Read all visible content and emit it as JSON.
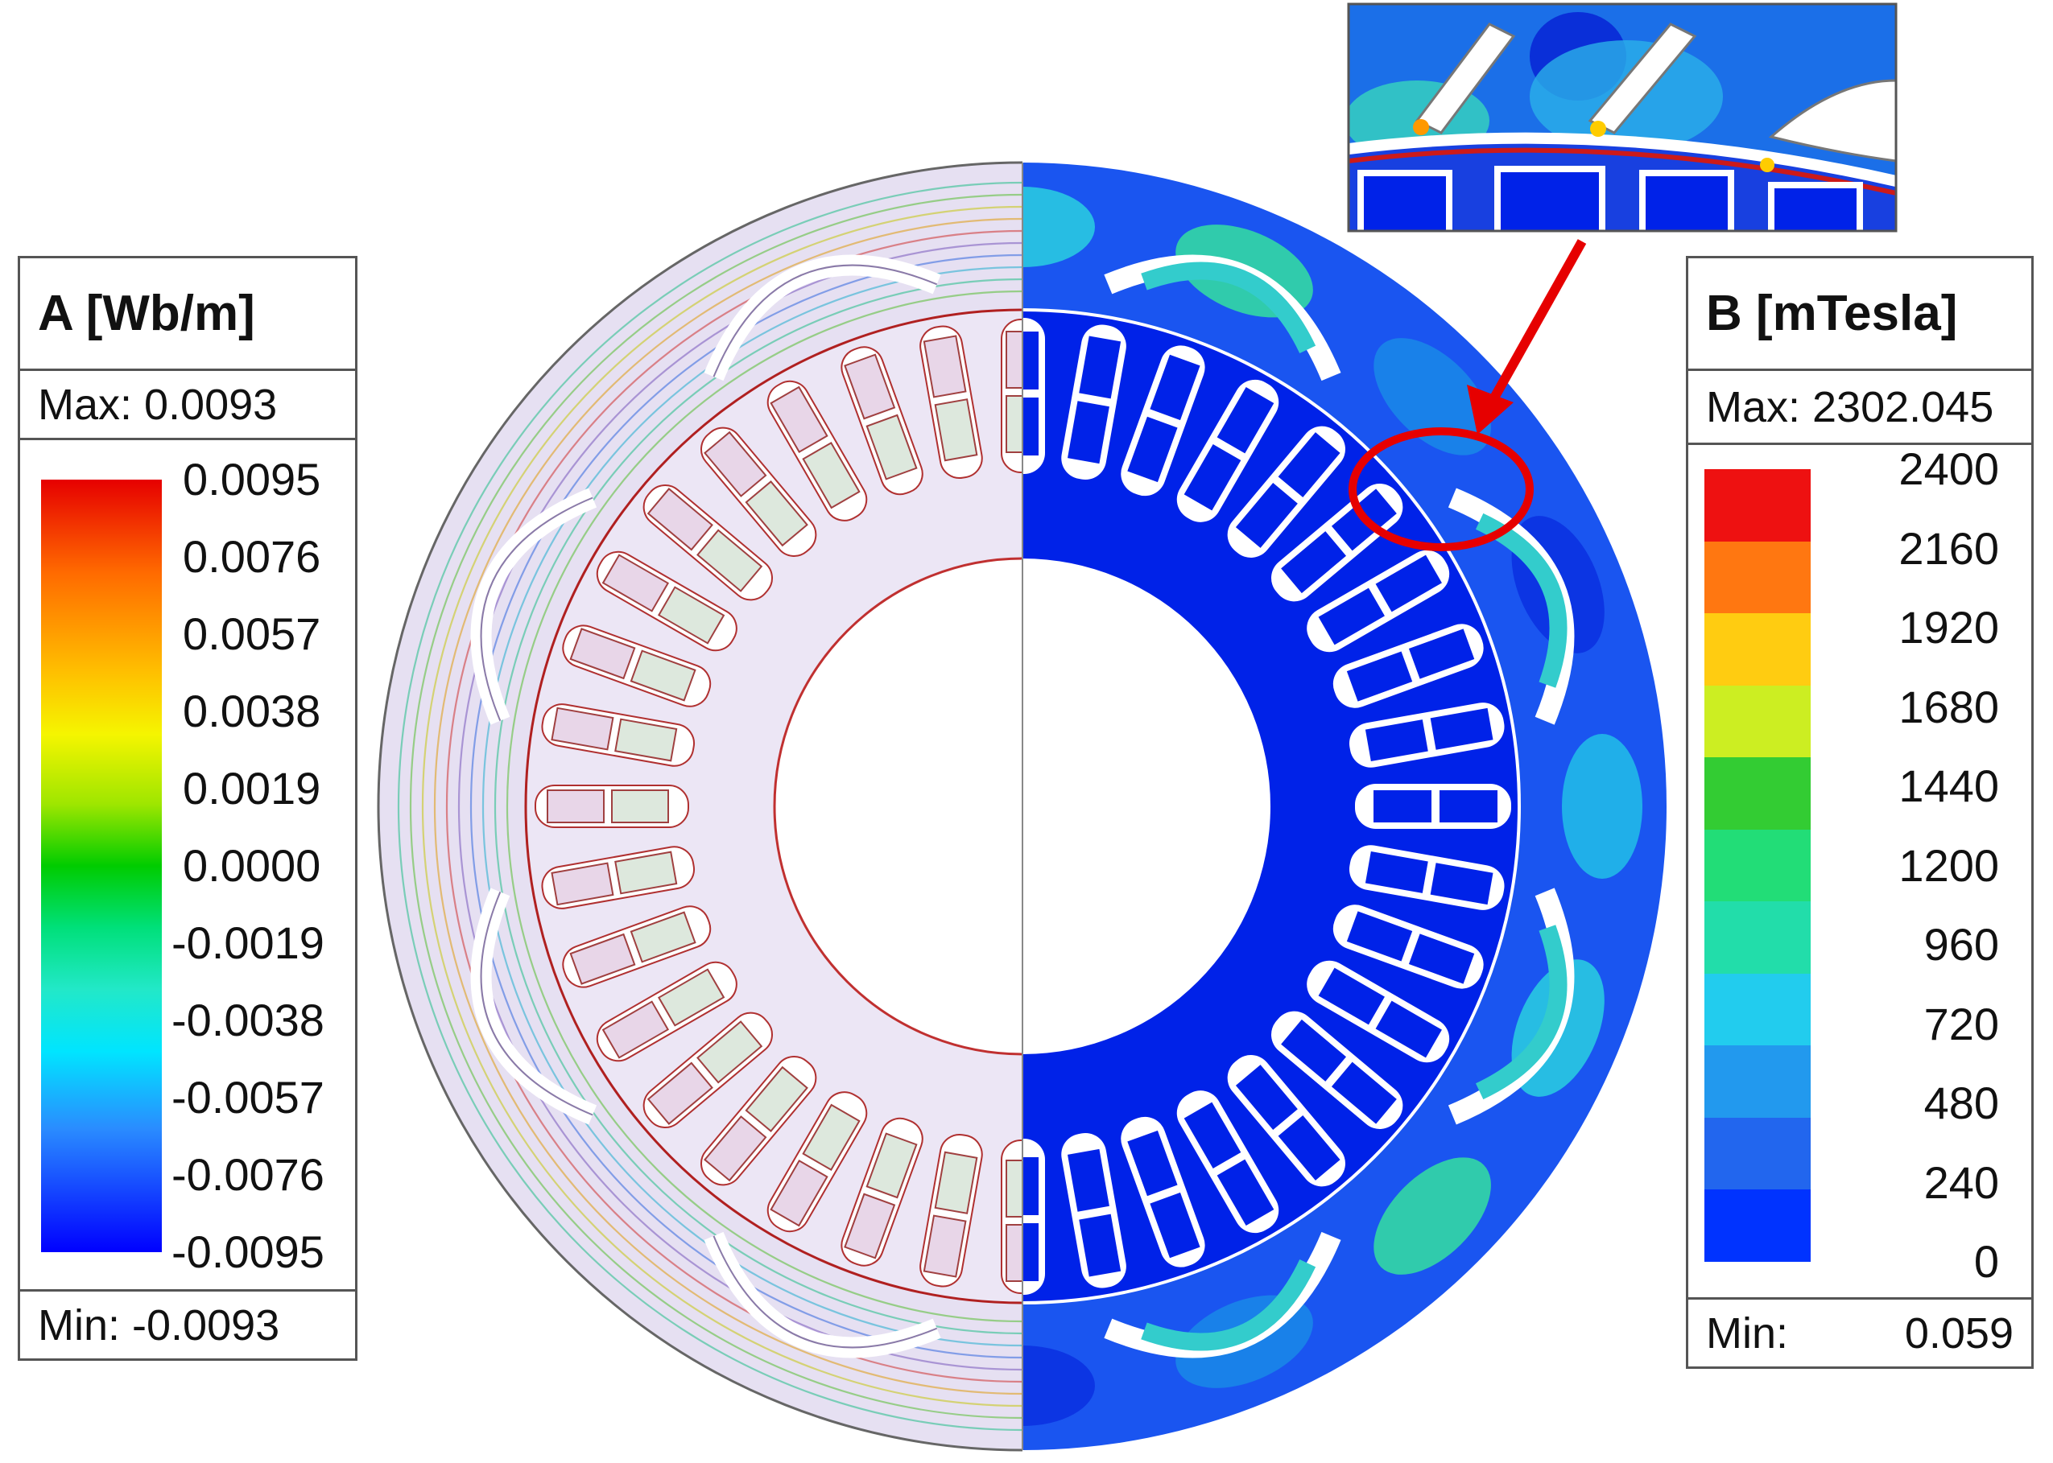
{
  "legend_a": {
    "title": "A [Wb/m]",
    "max_label": "Max: 0.0093",
    "min_label": "Min: -0.0093",
    "ticks": [
      "0.0095",
      "0.0076",
      "0.0057",
      "0.0038",
      "0.0019",
      "0.0000",
      "-0.0019",
      "-0.0038",
      "-0.0057",
      "-0.0076",
      "-0.0095"
    ]
  },
  "legend_b": {
    "title": "B [mTesla]",
    "max_label": "Max: 2302.045",
    "min_prefix": "Min:",
    "min_value": "0.059",
    "ticks": [
      "2400",
      "2160",
      "1920",
      "1680",
      "1440",
      "1200",
      "960",
      "720",
      "480",
      "240",
      "0"
    ],
    "band_colors": [
      "#ee1111",
      "#ff7711",
      "#ffcc11",
      "#ccee22",
      "#33cc33",
      "#22dd77",
      "#22ddaa",
      "#22ccee",
      "#2299ee",
      "#2266ee",
      "#0033ff"
    ]
  },
  "colors": {
    "core_fill_flux": "#e6e0f2",
    "core_fill_b": "#0022e8",
    "highlight": "#e60000"
  }
}
